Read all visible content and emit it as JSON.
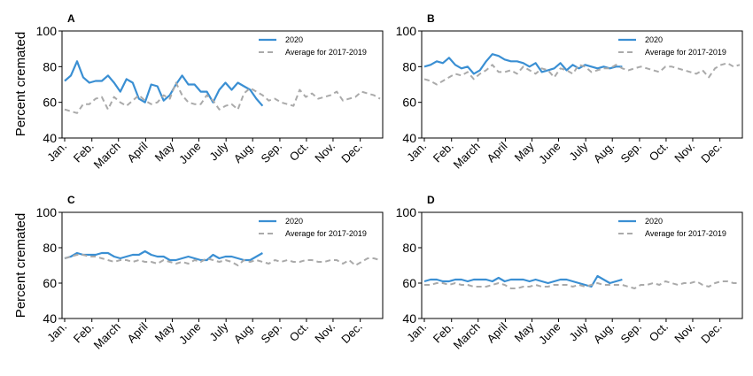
{
  "figure": {
    "ylabel": "Percent cremated",
    "legend": {
      "series_2020": "2020",
      "series_avg": "Average for 2017-2019"
    },
    "colors": {
      "series_2020": "#3a8fd3",
      "series_avg": "#aaaaaa"
    }
  },
  "chart_data": [
    {
      "panel": "A",
      "type": "line",
      "ylim": [
        40,
        100
      ],
      "yticks": [
        40,
        60,
        80,
        100
      ],
      "month_ticks": [
        "Jan.",
        "Feb.",
        "March",
        "April",
        "May",
        "June",
        "July",
        "Aug.",
        "Sep.",
        "Oct.",
        "Nov.",
        "Dec."
      ],
      "legend_position": "top-right",
      "series": [
        {
          "name": "2020",
          "week": [
            1,
            2,
            3,
            4,
            5,
            6,
            7,
            8,
            9,
            10,
            11,
            12,
            13,
            14,
            15,
            16,
            17,
            18,
            19,
            20,
            21,
            22,
            23,
            24,
            25,
            26,
            27,
            28,
            29,
            30,
            31,
            32,
            33
          ],
          "values": [
            72,
            75,
            83,
            74,
            71,
            72,
            72,
            75,
            71,
            66,
            73,
            71,
            62,
            60,
            70,
            69,
            61,
            64,
            70,
            75,
            70,
            70,
            66,
            66,
            60,
            67,
            71,
            67,
            71,
            69,
            67,
            62,
            58
          ]
        },
        {
          "name": "Average for 2017-2019",
          "week": [
            1,
            2,
            3,
            4,
            5,
            6,
            7,
            8,
            9,
            10,
            11,
            12,
            13,
            14,
            15,
            16,
            17,
            18,
            19,
            20,
            21,
            22,
            23,
            24,
            25,
            26,
            27,
            28,
            29,
            30,
            31,
            32,
            33,
            34,
            35,
            36,
            37,
            38,
            39,
            40,
            41,
            42,
            43,
            44,
            45,
            46,
            47,
            48,
            49,
            50,
            51,
            52
          ],
          "values": [
            56,
            55,
            54,
            59,
            59,
            62,
            63,
            56,
            63,
            60,
            58,
            61,
            64,
            61,
            59,
            60,
            64,
            62,
            71,
            64,
            60,
            59,
            59,
            64,
            61,
            56,
            58,
            59,
            56,
            65,
            68,
            66,
            64,
            61,
            62,
            60,
            59,
            58,
            67,
            63,
            65,
            62,
            63,
            64,
            66,
            61,
            62,
            63,
            66,
            65,
            64,
            62
          ]
        }
      ]
    },
    {
      "panel": "B",
      "type": "line",
      "ylim": [
        40,
        100
      ],
      "yticks": [
        40,
        60,
        80,
        100
      ],
      "month_ticks": [
        "Jan.",
        "Feb.",
        "March",
        "April",
        "May",
        "June",
        "July",
        "Aug.",
        "Sep.",
        "Oct.",
        "Nov.",
        "Dec."
      ],
      "legend_position": "top-right",
      "series": [
        {
          "name": "2020",
          "week": [
            1,
            2,
            3,
            4,
            5,
            6,
            7,
            8,
            9,
            10,
            11,
            12,
            13,
            14,
            15,
            16,
            17,
            18,
            19,
            20,
            21,
            22,
            23,
            24,
            25,
            26,
            27,
            28,
            29,
            30,
            31,
            32,
            33
          ],
          "values": [
            80,
            81,
            83,
            82,
            85,
            81,
            79,
            80,
            76,
            78,
            83,
            87,
            86,
            84,
            83,
            83,
            82,
            80,
            82,
            77,
            78,
            79,
            82,
            78,
            81,
            79,
            81,
            80,
            79,
            80,
            79,
            80,
            80
          ]
        },
        {
          "name": "Average for 2017-2019",
          "week": [
            1,
            2,
            3,
            4,
            5,
            6,
            7,
            8,
            9,
            10,
            11,
            12,
            13,
            14,
            15,
            16,
            17,
            18,
            19,
            20,
            21,
            22,
            23,
            24,
            25,
            26,
            27,
            28,
            29,
            30,
            31,
            32,
            33,
            34,
            35,
            36,
            37,
            38,
            39,
            40,
            41,
            42,
            43,
            44,
            45,
            46,
            47,
            48,
            49,
            50,
            51,
            52
          ],
          "values": [
            73,
            72,
            70,
            72,
            74,
            76,
            75,
            77,
            73,
            76,
            78,
            81,
            77,
            77,
            78,
            76,
            80,
            78,
            76,
            79,
            78,
            74,
            79,
            78,
            76,
            81,
            80,
            77,
            78,
            79,
            79,
            81,
            79,
            78,
            79,
            80,
            79,
            78,
            77,
            80,
            80,
            79,
            78,
            77,
            76,
            78,
            74,
            79,
            81,
            82,
            80,
            81
          ]
        }
      ]
    },
    {
      "panel": "C",
      "type": "line",
      "ylim": [
        40,
        100
      ],
      "yticks": [
        40,
        60,
        80,
        100
      ],
      "month_ticks": [
        "Jan.",
        "Feb.",
        "March",
        "April",
        "May",
        "June",
        "July",
        "Aug.",
        "Sep.",
        "Oct.",
        "Nov.",
        "Dec."
      ],
      "legend_position": "top-right",
      "series": [
        {
          "name": "2020",
          "week": [
            1,
            2,
            3,
            4,
            5,
            6,
            7,
            8,
            9,
            10,
            11,
            12,
            13,
            14,
            15,
            16,
            17,
            18,
            19,
            20,
            21,
            22,
            23,
            24,
            25,
            26,
            27,
            28,
            29,
            30,
            31,
            32,
            33
          ],
          "values": [
            74,
            75,
            77,
            76,
            76,
            76,
            77,
            77,
            75,
            74,
            75,
            76,
            76,
            78,
            76,
            75,
            75,
            73,
            73,
            74,
            75,
            74,
            73,
            73,
            76,
            74,
            75,
            75,
            74,
            73,
            73,
            75,
            77
          ]
        },
        {
          "name": "Average for 2017-2019",
          "week": [
            1,
            2,
            3,
            4,
            5,
            6,
            7,
            8,
            9,
            10,
            11,
            12,
            13,
            14,
            15,
            16,
            17,
            18,
            19,
            20,
            21,
            22,
            23,
            24,
            25,
            26,
            27,
            28,
            29,
            30,
            31,
            32,
            33,
            34,
            35,
            36,
            37,
            38,
            39,
            40,
            41,
            42,
            43,
            44,
            45,
            46,
            47,
            48,
            49,
            50,
            51,
            52
          ],
          "values": [
            74,
            75,
            76,
            76,
            75,
            75,
            74,
            73,
            72,
            73,
            73,
            72,
            73,
            72,
            72,
            71,
            73,
            72,
            71,
            72,
            71,
            73,
            72,
            74,
            73,
            72,
            73,
            72,
            70,
            73,
            72,
            73,
            72,
            71,
            73,
            72,
            73,
            72,
            72,
            73,
            73,
            72,
            72,
            73,
            73,
            71,
            73,
            70,
            72,
            74,
            74,
            73
          ]
        }
      ]
    },
    {
      "panel": "D",
      "type": "line",
      "ylim": [
        40,
        100
      ],
      "yticks": [
        40,
        60,
        80,
        100
      ],
      "month_ticks": [
        "Jan.",
        "Feb.",
        "March",
        "April",
        "May",
        "June",
        "July",
        "Aug.",
        "Sep.",
        "Oct.",
        "Nov.",
        "Dec."
      ],
      "legend_position": "top-right",
      "series": [
        {
          "name": "2020",
          "week": [
            1,
            2,
            3,
            4,
            5,
            6,
            7,
            8,
            9,
            10,
            11,
            12,
            13,
            14,
            15,
            16,
            17,
            18,
            19,
            20,
            21,
            22,
            23,
            24,
            25,
            26,
            27,
            28,
            29,
            30,
            31,
            32,
            33
          ],
          "values": [
            61,
            62,
            62,
            61,
            61,
            62,
            62,
            61,
            62,
            62,
            62,
            61,
            63,
            61,
            62,
            62,
            62,
            61,
            62,
            61,
            60,
            61,
            62,
            62,
            61,
            60,
            59,
            58,
            64,
            62,
            60,
            61,
            62
          ]
        },
        {
          "name": "Average for 2017-2019",
          "week": [
            1,
            2,
            3,
            4,
            5,
            6,
            7,
            8,
            9,
            10,
            11,
            12,
            13,
            14,
            15,
            16,
            17,
            18,
            19,
            20,
            21,
            22,
            23,
            24,
            25,
            26,
            27,
            28,
            29,
            30,
            31,
            32,
            33,
            34,
            35,
            36,
            37,
            38,
            39,
            40,
            41,
            42,
            43,
            44,
            45,
            46,
            47,
            48,
            49,
            50,
            51,
            52
          ],
          "values": [
            59,
            59,
            60,
            60,
            59,
            60,
            59,
            59,
            58,
            58,
            58,
            59,
            60,
            59,
            57,
            57,
            58,
            58,
            59,
            58,
            58,
            59,
            59,
            59,
            58,
            59,
            58,
            59,
            60,
            59,
            59,
            59,
            59,
            58,
            57,
            59,
            59,
            60,
            59,
            61,
            60,
            59,
            60,
            60,
            61,
            59,
            58,
            60,
            61,
            61,
            60,
            60
          ]
        }
      ]
    }
  ]
}
